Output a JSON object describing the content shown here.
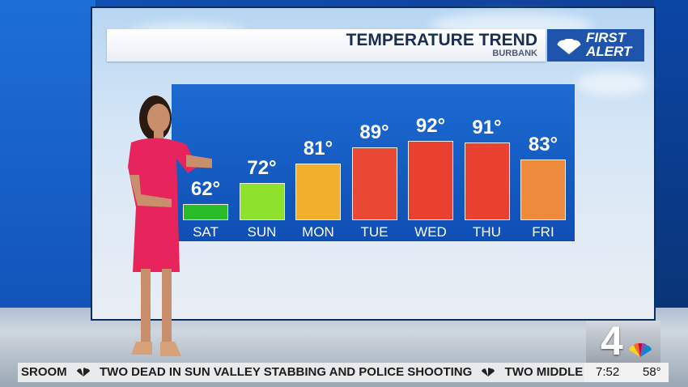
{
  "graphic": {
    "title": "TEMPERATURE TREND",
    "location": "BURBANK",
    "brand_line1": "FIRST",
    "brand_line2": "ALERT"
  },
  "forecast": [
    {
      "day": "SAT",
      "temp": "62°",
      "value": 62,
      "color": "#2bbc2a"
    },
    {
      "day": "SUN",
      "temp": "72°",
      "value": 72,
      "color": "#8ee22b"
    },
    {
      "day": "MON",
      "temp": "81°",
      "value": 81,
      "color": "#f0b02c"
    },
    {
      "day": "TUE",
      "temp": "89°",
      "value": 89,
      "color": "#ea4a35"
    },
    {
      "day": "WED",
      "temp": "92°",
      "value": 92,
      "color": "#e9412f"
    },
    {
      "day": "THU",
      "temp": "91°",
      "value": 91,
      "color": "#e9412f"
    },
    {
      "day": "FRI",
      "temp": "83°",
      "value": 83,
      "color": "#ee8a3c"
    }
  ],
  "ticker": {
    "text_1": "SROOM",
    "text_2": "TWO DEAD IN SUN VALLEY STABBING AND POLICE SHOOTING",
    "text_3": "TWO MIDDLE SCHOOL"
  },
  "status": {
    "time": "7:52",
    "temperature": "58°"
  },
  "station": {
    "channel": "4"
  }
}
